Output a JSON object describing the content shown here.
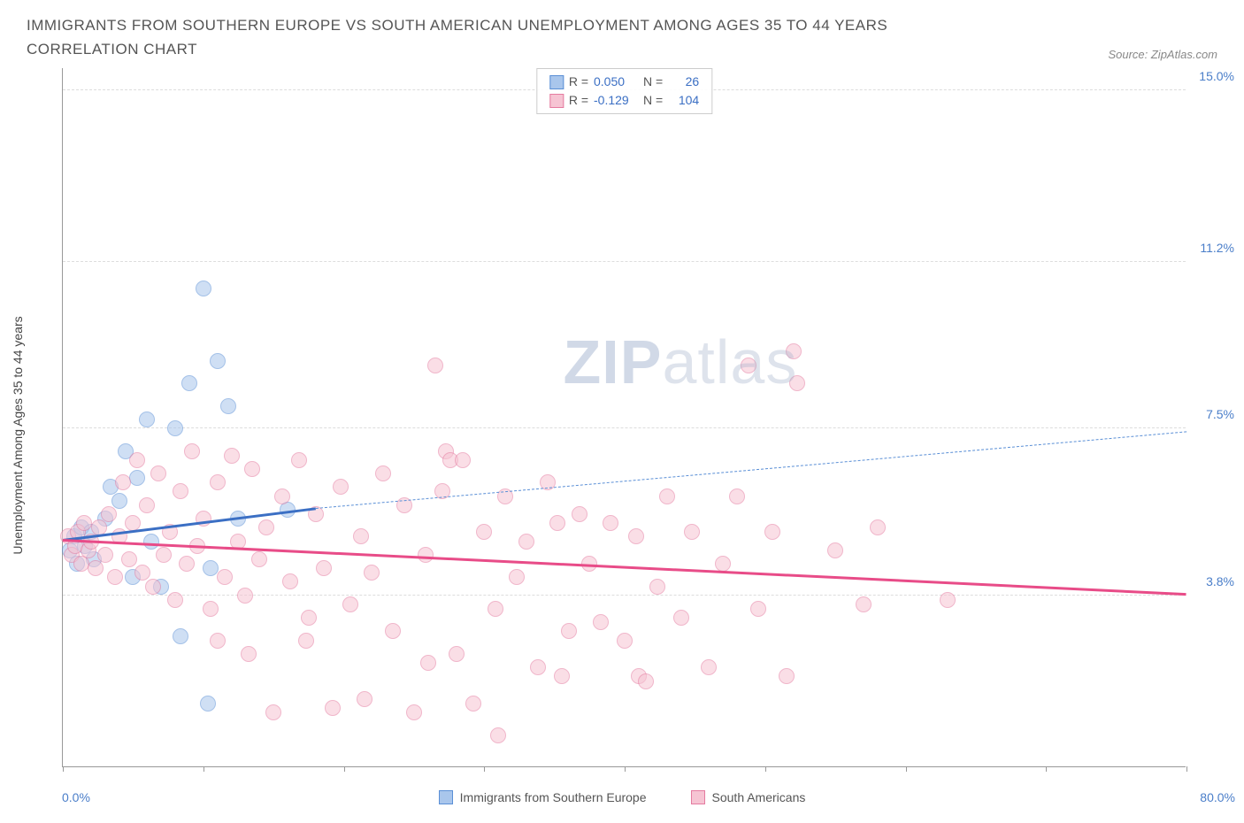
{
  "title": "IMMIGRANTS FROM SOUTHERN EUROPE VS SOUTH AMERICAN UNEMPLOYMENT AMONG AGES 35 TO 44 YEARS CORRELATION CHART",
  "source_label": "Source: ZipAtlas.com",
  "y_axis_label": "Unemployment Among Ages 35 to 44 years",
  "watermark_bold": "ZIP",
  "watermark_light": "atlas",
  "chart": {
    "type": "scatter",
    "background_color": "#ffffff",
    "grid_color": "#dddddd",
    "axis_color": "#999999",
    "xlim": [
      0,
      80
    ],
    "ylim": [
      0,
      15.5
    ],
    "x_min_label": "0.0%",
    "x_max_label": "80.0%",
    "x_ticks": [
      0,
      10,
      20,
      30,
      40,
      50,
      60,
      70,
      80
    ],
    "y_ticks": [
      {
        "value": 3.8,
        "label": "3.8%"
      },
      {
        "value": 7.5,
        "label": "7.5%"
      },
      {
        "value": 11.2,
        "label": "11.2%"
      },
      {
        "value": 15.0,
        "label": "15.0%"
      }
    ],
    "y_gridlines": [
      3.8,
      7.5,
      11.2,
      15.0
    ],
    "axis_label_color": "#4a7ec9",
    "marker_radius": 9,
    "marker_opacity": 0.55,
    "series": [
      {
        "id": "southern_europe",
        "legend_label": "Immigrants from Southern Europe",
        "fill_color": "#a9c6ec",
        "stroke_color": "#5a8fd6",
        "r_label": "R =",
        "r_value": "0.050",
        "n_label": "N =",
        "n_value": "26",
        "trend": {
          "x1": 0,
          "y1": 5.0,
          "x2": 18,
          "y2": 5.7,
          "color": "#3b6fc4",
          "width": 2.5,
          "style": "solid"
        },
        "trend_dashed": {
          "x1": 18,
          "y1": 5.7,
          "x2": 80,
          "y2": 7.4,
          "color": "#5a8fd6",
          "width": 1.5,
          "style": "dashed"
        },
        "points": [
          [
            0.5,
            4.8
          ],
          [
            0.8,
            5.1
          ],
          [
            1.0,
            4.5
          ],
          [
            1.3,
            5.3
          ],
          [
            1.6,
            4.9
          ],
          [
            2.0,
            5.2
          ],
          [
            2.2,
            4.6
          ],
          [
            3.0,
            5.5
          ],
          [
            3.4,
            6.2
          ],
          [
            4.0,
            5.9
          ],
          [
            4.5,
            7.0
          ],
          [
            5.0,
            4.2
          ],
          [
            5.3,
            6.4
          ],
          [
            6.0,
            7.7
          ],
          [
            6.3,
            5.0
          ],
          [
            7.0,
            4.0
          ],
          [
            8.0,
            7.5
          ],
          [
            8.4,
            2.9
          ],
          [
            9.0,
            8.5
          ],
          [
            10.0,
            10.6
          ],
          [
            10.5,
            4.4
          ],
          [
            11.0,
            9.0
          ],
          [
            11.8,
            8.0
          ],
          [
            10.3,
            1.4
          ],
          [
            12.5,
            5.5
          ],
          [
            16.0,
            5.7
          ]
        ]
      },
      {
        "id": "south_americans",
        "legend_label": "South Americans",
        "fill_color": "#f6c4d3",
        "stroke_color": "#e57ba0",
        "r_label": "R =",
        "r_value": "-0.129",
        "n_label": "N =",
        "n_value": "104",
        "trend": {
          "x1": 0,
          "y1": 5.0,
          "x2": 80,
          "y2": 3.8,
          "color": "#e84c88",
          "width": 2.5,
          "style": "solid"
        },
        "points": [
          [
            0.4,
            5.1
          ],
          [
            0.6,
            4.7
          ],
          [
            0.9,
            4.9
          ],
          [
            1.1,
            5.2
          ],
          [
            1.3,
            4.5
          ],
          [
            1.5,
            5.4
          ],
          [
            1.8,
            4.8
          ],
          [
            2.0,
            5.0
          ],
          [
            2.3,
            4.4
          ],
          [
            2.6,
            5.3
          ],
          [
            3.0,
            4.7
          ],
          [
            3.3,
            5.6
          ],
          [
            3.7,
            4.2
          ],
          [
            4.0,
            5.1
          ],
          [
            4.3,
            6.3
          ],
          [
            4.7,
            4.6
          ],
          [
            5.0,
            5.4
          ],
          [
            5.3,
            6.8
          ],
          [
            5.7,
            4.3
          ],
          [
            6.0,
            5.8
          ],
          [
            6.4,
            4.0
          ],
          [
            6.8,
            6.5
          ],
          [
            7.2,
            4.7
          ],
          [
            7.6,
            5.2
          ],
          [
            8.0,
            3.7
          ],
          [
            8.4,
            6.1
          ],
          [
            8.8,
            4.5
          ],
          [
            9.2,
            7.0
          ],
          [
            9.6,
            4.9
          ],
          [
            10.0,
            5.5
          ],
          [
            10.5,
            3.5
          ],
          [
            11.0,
            6.3
          ],
          [
            11.5,
            4.2
          ],
          [
            12.0,
            6.9
          ],
          [
            12.5,
            5.0
          ],
          [
            13.0,
            3.8
          ],
          [
            13.5,
            6.6
          ],
          [
            14.0,
            4.6
          ],
          [
            14.5,
            5.3
          ],
          [
            15.0,
            1.2
          ],
          [
            15.6,
            6.0
          ],
          [
            16.2,
            4.1
          ],
          [
            16.8,
            6.8
          ],
          [
            17.5,
            3.3
          ],
          [
            18.0,
            5.6
          ],
          [
            18.6,
            4.4
          ],
          [
            19.2,
            1.3
          ],
          [
            19.8,
            6.2
          ],
          [
            20.5,
            3.6
          ],
          [
            21.2,
            5.1
          ],
          [
            22.0,
            4.3
          ],
          [
            22.8,
            6.5
          ],
          [
            23.5,
            3.0
          ],
          [
            24.3,
            5.8
          ],
          [
            25.0,
            1.2
          ],
          [
            25.8,
            4.7
          ],
          [
            26.5,
            8.9
          ],
          [
            27.0,
            6.1
          ],
          [
            27.3,
            7.0
          ],
          [
            27.6,
            6.8
          ],
          [
            28.0,
            2.5
          ],
          [
            28.5,
            6.8
          ],
          [
            29.2,
            1.4
          ],
          [
            30.0,
            5.2
          ],
          [
            30.8,
            3.5
          ],
          [
            31.5,
            6.0
          ],
          [
            31.0,
            0.7
          ],
          [
            32.3,
            4.2
          ],
          [
            33.0,
            5.0
          ],
          [
            33.8,
            2.2
          ],
          [
            34.5,
            6.3
          ],
          [
            35.2,
            5.4
          ],
          [
            35.5,
            2.0
          ],
          [
            36.0,
            3.0
          ],
          [
            36.8,
            5.6
          ],
          [
            37.5,
            4.5
          ],
          [
            38.3,
            3.2
          ],
          [
            39.0,
            5.4
          ],
          [
            40.0,
            2.8
          ],
          [
            40.8,
            5.1
          ],
          [
            41.0,
            2.0
          ],
          [
            41.5,
            1.9
          ],
          [
            42.3,
            4.0
          ],
          [
            43.0,
            6.0
          ],
          [
            44.0,
            3.3
          ],
          [
            44.8,
            5.2
          ],
          [
            46.0,
            2.2
          ],
          [
            47.0,
            4.5
          ],
          [
            48.0,
            6.0
          ],
          [
            48.8,
            8.9
          ],
          [
            49.5,
            3.5
          ],
          [
            50.5,
            5.2
          ],
          [
            51.5,
            2.0
          ],
          [
            52.0,
            9.2
          ],
          [
            52.3,
            8.5
          ],
          [
            55.0,
            4.8
          ],
          [
            57.0,
            3.6
          ],
          [
            58.0,
            5.3
          ],
          [
            63.0,
            3.7
          ],
          [
            11.0,
            2.8
          ],
          [
            13.2,
            2.5
          ],
          [
            17.3,
            2.8
          ],
          [
            21.5,
            1.5
          ],
          [
            26.0,
            2.3
          ]
        ]
      }
    ]
  }
}
